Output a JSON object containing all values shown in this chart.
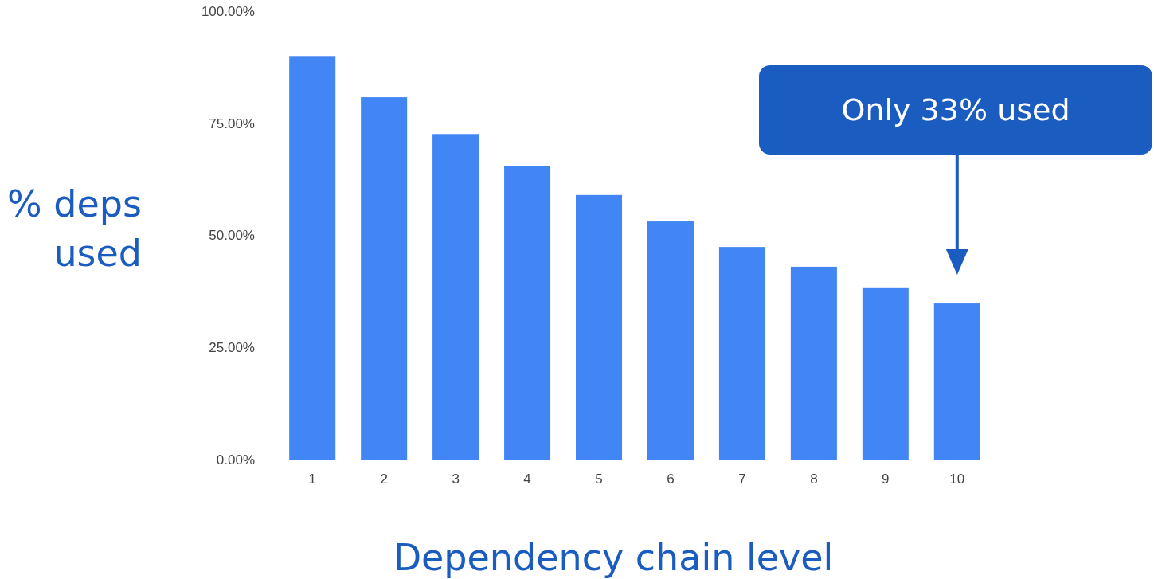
{
  "chart_data": {
    "type": "bar",
    "xlabel": "Dependency chain level",
    "ylabel": "% deps used",
    "categories": [
      "1",
      "2",
      "3",
      "4",
      "5",
      "6",
      "7",
      "8",
      "9",
      "10"
    ],
    "values": [
      90.0,
      80.8,
      72.6,
      65.5,
      59.0,
      53.1,
      47.4,
      43.0,
      38.4,
      34.8
    ],
    "color": "#4285f4",
    "ylim": [
      0,
      100
    ],
    "yticks": [
      {
        "value": 0,
        "label": "0.00%"
      },
      {
        "value": 25,
        "label": "25.00%"
      },
      {
        "value": 50,
        "label": "50.00%"
      },
      {
        "value": 75,
        "label": "75.00%"
      },
      {
        "value": 100,
        "label": "100.00%"
      }
    ],
    "annotations": [
      "Only 33% used"
    ]
  }
}
